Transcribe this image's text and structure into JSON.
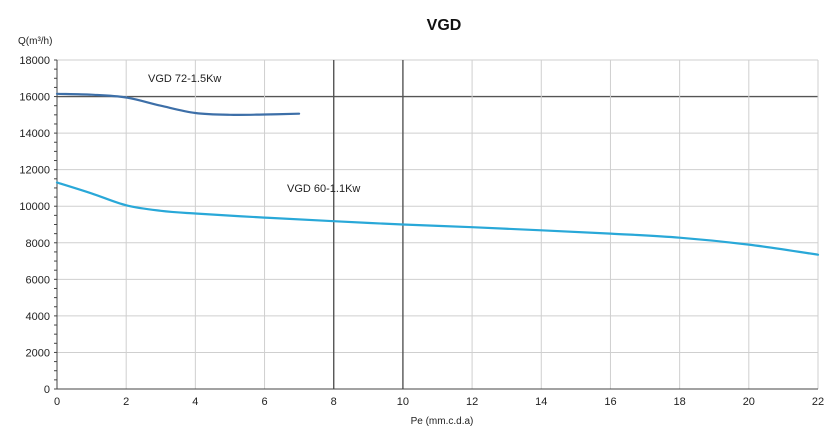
{
  "chart_data": {
    "type": "line",
    "title": "VGD",
    "xlabel": "Pe (mm.c.d.a)",
    "ylabel": "Q(m³/h)",
    "xlim": [
      0,
      22
    ],
    "ylim": [
      0,
      18000
    ],
    "x_ticks": [
      0,
      2,
      4,
      6,
      8,
      10,
      12,
      14,
      16,
      18,
      20,
      22
    ],
    "y_ticks": [
      0,
      2000,
      4000,
      6000,
      8000,
      10000,
      12000,
      14000,
      16000,
      18000
    ],
    "grid": true,
    "series": [
      {
        "name": "VGD 72-1.5Kw",
        "color": "#3d6fa8",
        "points": [
          [
            0,
            16150
          ],
          [
            1,
            16100
          ],
          [
            2,
            15950
          ],
          [
            3,
            15500
          ],
          [
            4,
            15100
          ],
          [
            5,
            15000
          ],
          [
            6,
            15020
          ],
          [
            7,
            15060
          ]
        ]
      },
      {
        "name": "VGD 60-1.1Kw",
        "color": "#29a8d8",
        "points": [
          [
            0,
            11300
          ],
          [
            1,
            10700
          ],
          [
            2,
            10050
          ],
          [
            3,
            9750
          ],
          [
            4,
            9600
          ],
          [
            6,
            9380
          ],
          [
            8,
            9180
          ],
          [
            10,
            9000
          ],
          [
            12,
            8850
          ],
          [
            14,
            8680
          ],
          [
            16,
            8500
          ],
          [
            18,
            8280
          ],
          [
            20,
            7900
          ],
          [
            22,
            7350
          ]
        ]
      }
    ]
  }
}
